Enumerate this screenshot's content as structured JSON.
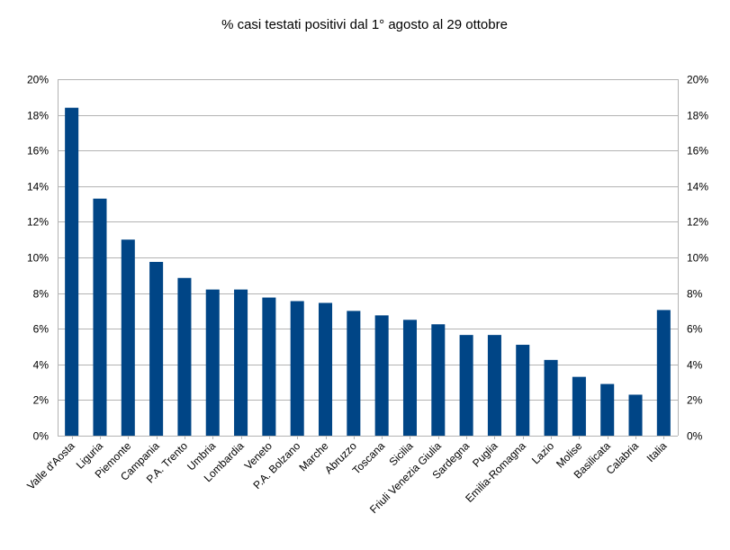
{
  "chart_data": {
    "type": "bar",
    "title": "% casi testati positivi dal 1° agosto al 29 ottobre",
    "xlabel": "",
    "ylabel": "",
    "ylim": [
      0,
      20
    ],
    "y_ticks": [
      "0%",
      "2%",
      "4%",
      "6%",
      "8%",
      "10%",
      "12%",
      "14%",
      "16%",
      "18%",
      "20%"
    ],
    "secondary_axis": true,
    "grid": true,
    "legend": "none",
    "bar_color": "#004586",
    "categories": [
      "Valle d'Aosta",
      "Liguria",
      "Piemonte",
      "Campania",
      "P.A. Trento",
      "Umbria",
      "Lombardia",
      "Veneto",
      "P.A. Bolzano",
      "Marche",
      "Abruzzo",
      "Toscana",
      "Sicilia",
      "Friuli Venezia Giulia",
      "Sardegna",
      "Puglia",
      "Emilia-Romagna",
      "Lazio",
      "Molise",
      "Basilicata",
      "Calabria",
      "Italia"
    ],
    "values": [
      18.4,
      13.3,
      11.0,
      9.75,
      8.85,
      8.2,
      8.2,
      7.75,
      7.55,
      7.45,
      7.0,
      6.75,
      6.5,
      6.25,
      5.65,
      5.65,
      5.1,
      4.25,
      3.3,
      2.9,
      2.3,
      7.05
    ]
  }
}
